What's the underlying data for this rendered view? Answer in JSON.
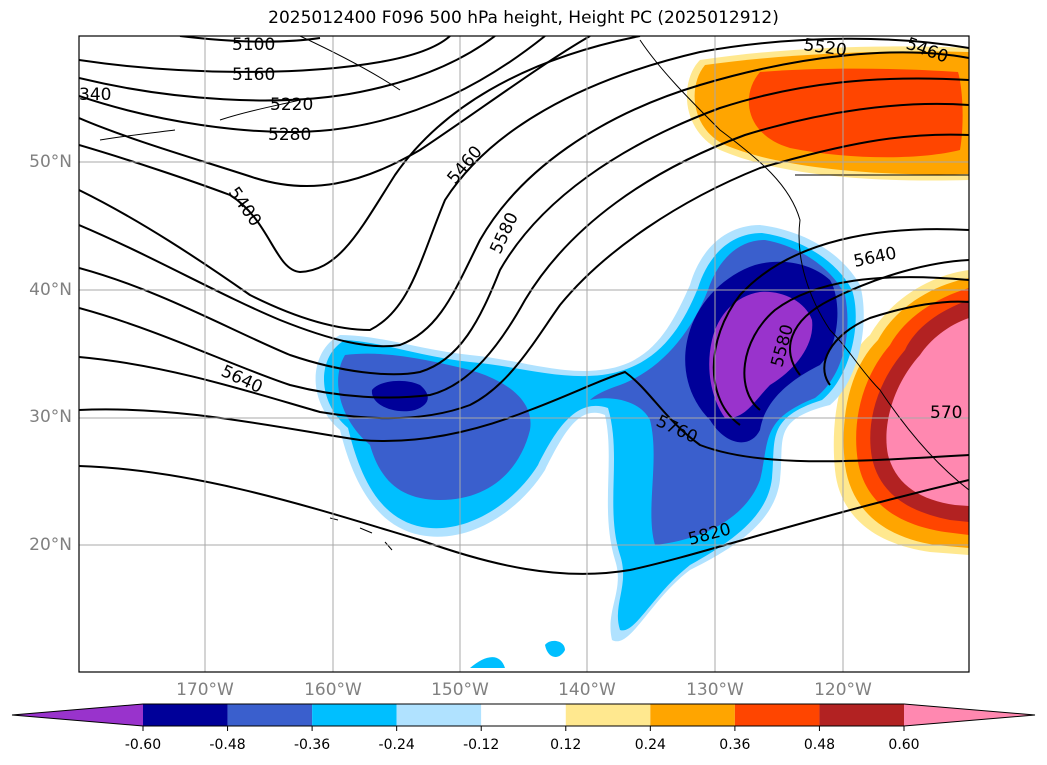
{
  "title": "2025012400 F096 500 hPa height, Height PC (2025012912)",
  "lat_labels": [
    {
      "text": "50°N"
    },
    {
      "text": "40°N"
    },
    {
      "text": "30°N"
    },
    {
      "text": "20°N"
    }
  ],
  "lon_labels": [
    {
      "text": "170°W"
    },
    {
      "text": "160°W"
    },
    {
      "text": "150°W"
    },
    {
      "text": "140°W"
    },
    {
      "text": "130°W"
    },
    {
      "text": "120°W"
    }
  ],
  "contour_labels": [
    "5100",
    "5160",
    "5220",
    "5280",
    "340",
    "5400",
    "5460",
    "5580",
    "5640",
    "5760",
    "5820",
    "5520",
    "5460",
    "5640",
    "5580",
    "570"
  ],
  "colorbar": {
    "ticks": [
      "-0.60",
      "-0.48",
      "-0.36",
      "-0.24",
      "-0.12",
      "0.12",
      "0.24",
      "0.36",
      "0.48",
      "0.60"
    ],
    "colors": [
      "#9933cc",
      "#000099",
      "#3a5fcd",
      "#00bfff",
      "#b0e2ff",
      "#ffffff",
      "#ffe88f",
      "#ffa500",
      "#ff4500",
      "#b22222",
      "#ff88b0"
    ]
  }
}
